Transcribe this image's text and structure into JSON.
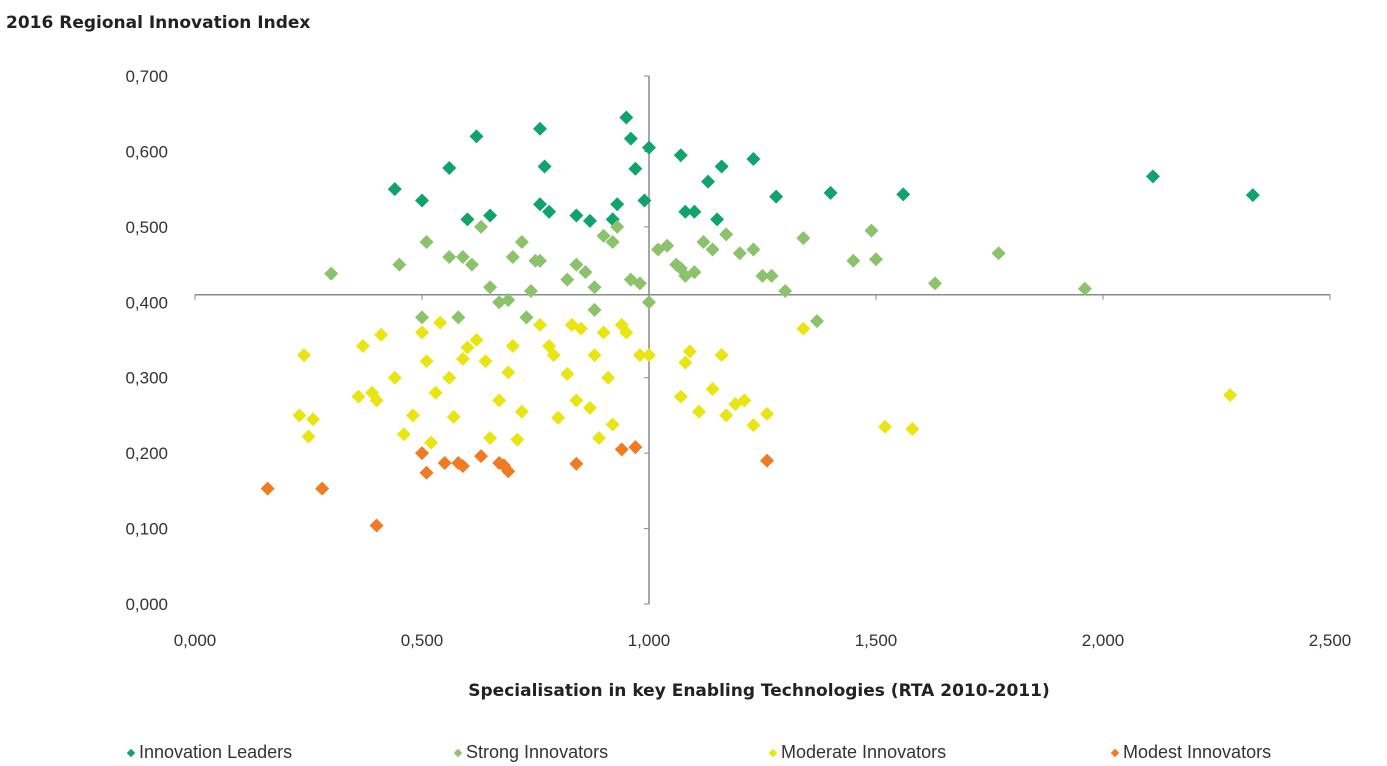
{
  "title": "2016 Regional Innovation Index",
  "chart_data": {
    "type": "scatter",
    "title": "2016 Regional Innovation Index",
    "xlabel": "Specialisation in key Enabling Technologies (RTA 2010-2011)",
    "ylabel": "",
    "xlim": [
      0,
      2.5
    ],
    "ylim": [
      0,
      0.7
    ],
    "x_tick_labels": [
      "0,000",
      "0,500",
      "1,000",
      "1,500",
      "2,000",
      "2,500"
    ],
    "y_tick_labels": [
      "0,000",
      "0,100",
      "0,200",
      "0,300",
      "0,400",
      "0,500",
      "0,600",
      "0,700"
    ],
    "reference_lines": {
      "x": 1.0,
      "y": 0.41
    },
    "grid": false,
    "legend_position": "bottom",
    "series": [
      {
        "name": "Innovation Leaders",
        "color": "#10a36c",
        "marker": "diamond",
        "points": [
          [
            0.44,
            0.55
          ],
          [
            0.5,
            0.535
          ],
          [
            0.56,
            0.578
          ],
          [
            0.6,
            0.51
          ],
          [
            0.62,
            0.62
          ],
          [
            0.65,
            0.515
          ],
          [
            0.76,
            0.63
          ],
          [
            0.77,
            0.58
          ],
          [
            0.76,
            0.53
          ],
          [
            0.78,
            0.52
          ],
          [
            0.84,
            0.515
          ],
          [
            0.87,
            0.508
          ],
          [
            0.92,
            0.51
          ],
          [
            0.93,
            0.53
          ],
          [
            0.95,
            0.645
          ],
          [
            0.96,
            0.617
          ],
          [
            0.97,
            0.577
          ],
          [
            0.99,
            0.535
          ],
          [
            1.0,
            0.605
          ],
          [
            1.07,
            0.595
          ],
          [
            1.08,
            0.52
          ],
          [
            1.1,
            0.52
          ],
          [
            1.13,
            0.56
          ],
          [
            1.16,
            0.58
          ],
          [
            1.15,
            0.51
          ],
          [
            1.23,
            0.59
          ],
          [
            1.28,
            0.54
          ],
          [
            1.4,
            0.545
          ],
          [
            1.56,
            0.543
          ],
          [
            2.11,
            0.567
          ],
          [
            2.33,
            0.542
          ]
        ]
      },
      {
        "name": "Strong Innovators",
        "color": "#8dc26c",
        "marker": "diamond",
        "points": [
          [
            0.3,
            0.438
          ],
          [
            0.45,
            0.45
          ],
          [
            0.5,
            0.38
          ],
          [
            0.51,
            0.48
          ],
          [
            0.56,
            0.46
          ],
          [
            0.59,
            0.46
          ],
          [
            0.58,
            0.38
          ],
          [
            0.61,
            0.45
          ],
          [
            0.63,
            0.5
          ],
          [
            0.65,
            0.42
          ],
          [
            0.67,
            0.4
          ],
          [
            0.69,
            0.403
          ],
          [
            0.7,
            0.46
          ],
          [
            0.72,
            0.48
          ],
          [
            0.74,
            0.415
          ],
          [
            0.76,
            0.455
          ],
          [
            0.75,
            0.455
          ],
          [
            0.73,
            0.38
          ],
          [
            0.82,
            0.43
          ],
          [
            0.84,
            0.45
          ],
          [
            0.86,
            0.44
          ],
          [
            0.88,
            0.42
          ],
          [
            0.88,
            0.39
          ],
          [
            0.9,
            0.488
          ],
          [
            0.92,
            0.48
          ],
          [
            0.93,
            0.5
          ],
          [
            0.96,
            0.43
          ],
          [
            0.98,
            0.425
          ],
          [
            1.0,
            0.4
          ],
          [
            1.02,
            0.47
          ],
          [
            1.04,
            0.475
          ],
          [
            1.06,
            0.45
          ],
          [
            1.08,
            0.435
          ],
          [
            1.07,
            0.445
          ],
          [
            1.1,
            0.44
          ],
          [
            1.12,
            0.48
          ],
          [
            1.14,
            0.47
          ],
          [
            1.17,
            0.49
          ],
          [
            1.2,
            0.465
          ],
          [
            1.23,
            0.47
          ],
          [
            1.25,
            0.435
          ],
          [
            1.27,
            0.435
          ],
          [
            1.3,
            0.415
          ],
          [
            1.34,
            0.485
          ],
          [
            1.37,
            0.375
          ],
          [
            1.45,
            0.455
          ],
          [
            1.49,
            0.495
          ],
          [
            1.5,
            0.457
          ],
          [
            1.63,
            0.425
          ],
          [
            1.77,
            0.465
          ],
          [
            1.96,
            0.418
          ]
        ]
      },
      {
        "name": "Moderate Innovators",
        "color": "#e8e512",
        "marker": "diamond",
        "points": [
          [
            0.23,
            0.25
          ],
          [
            0.24,
            0.33
          ],
          [
            0.25,
            0.222
          ],
          [
            0.26,
            0.245
          ],
          [
            0.36,
            0.275
          ],
          [
            0.37,
            0.342
          ],
          [
            0.39,
            0.28
          ],
          [
            0.4,
            0.27
          ],
          [
            0.41,
            0.357
          ],
          [
            0.44,
            0.3
          ],
          [
            0.46,
            0.225
          ],
          [
            0.48,
            0.25
          ],
          [
            0.5,
            0.36
          ],
          [
            0.51,
            0.322
          ],
          [
            0.52,
            0.214
          ],
          [
            0.53,
            0.28
          ],
          [
            0.54,
            0.373
          ],
          [
            0.56,
            0.3
          ],
          [
            0.57,
            0.248
          ],
          [
            0.59,
            0.325
          ],
          [
            0.6,
            0.34
          ],
          [
            0.62,
            0.35
          ],
          [
            0.64,
            0.322
          ],
          [
            0.65,
            0.22
          ],
          [
            0.67,
            0.27
          ],
          [
            0.69,
            0.307
          ],
          [
            0.7,
            0.342
          ],
          [
            0.71,
            0.218
          ],
          [
            0.72,
            0.255
          ],
          [
            0.76,
            0.37
          ],
          [
            0.78,
            0.342
          ],
          [
            0.79,
            0.33
          ],
          [
            0.8,
            0.247
          ],
          [
            0.82,
            0.305
          ],
          [
            0.83,
            0.37
          ],
          [
            0.84,
            0.27
          ],
          [
            0.85,
            0.365
          ],
          [
            0.87,
            0.26
          ],
          [
            0.88,
            0.33
          ],
          [
            0.89,
            0.22
          ],
          [
            0.9,
            0.36
          ],
          [
            0.91,
            0.3
          ],
          [
            0.92,
            0.238
          ],
          [
            0.94,
            0.37
          ],
          [
            0.95,
            0.36
          ],
          [
            0.98,
            0.33
          ],
          [
            1.0,
            0.33
          ],
          [
            1.07,
            0.275
          ],
          [
            1.08,
            0.32
          ],
          [
            1.09,
            0.335
          ],
          [
            1.11,
            0.255
          ],
          [
            1.14,
            0.285
          ],
          [
            1.16,
            0.33
          ],
          [
            1.17,
            0.25
          ],
          [
            1.19,
            0.265
          ],
          [
            1.21,
            0.27
          ],
          [
            1.23,
            0.237
          ],
          [
            1.26,
            0.252
          ],
          [
            1.34,
            0.365
          ],
          [
            1.52,
            0.235
          ],
          [
            1.58,
            0.232
          ],
          [
            2.28,
            0.277
          ]
        ]
      },
      {
        "name": "Modest Innovators",
        "color": "#ef7b22",
        "marker": "diamond",
        "points": [
          [
            0.16,
            0.153
          ],
          [
            0.28,
            0.153
          ],
          [
            0.4,
            0.104
          ],
          [
            0.5,
            0.2
          ],
          [
            0.51,
            0.174
          ],
          [
            0.55,
            0.187
          ],
          [
            0.58,
            0.187
          ],
          [
            0.59,
            0.183
          ],
          [
            0.63,
            0.196
          ],
          [
            0.67,
            0.187
          ],
          [
            0.68,
            0.184
          ],
          [
            0.69,
            0.176
          ],
          [
            0.84,
            0.186
          ],
          [
            0.94,
            0.205
          ],
          [
            0.97,
            0.208
          ],
          [
            1.26,
            0.19
          ]
        ]
      }
    ]
  }
}
